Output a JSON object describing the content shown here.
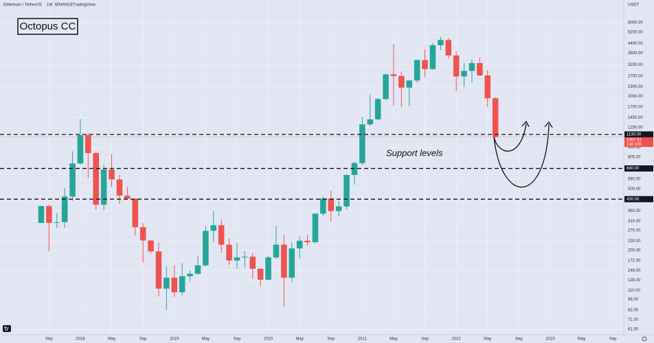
{
  "header": [
    "Ethereum / TetherUS",
    "1M",
    "BINANCE",
    "TradingView"
  ],
  "chart_data": {
    "type": "candlestick",
    "currency": "USDT",
    "annotations": [
      "Octopus CC",
      "Support levels"
    ],
    "log_scale": true,
    "grid": true,
    "up_color": "#26a69a",
    "down_color": "#ef5350",
    "series": {
      "open": [
        301,
        388,
        302,
        305,
        447,
        733,
        1118,
        856,
        396,
        669,
        577,
        453,
        433,
        283,
        232,
        197,
        113,
        133,
        107,
        136,
        141,
        160,
        268,
        291,
        218,
        172,
        180,
        182,
        152,
        129,
        180,
        218,
        133,
        206,
        231,
        226,
        346,
        434,
        360,
        386,
        617,
        737,
        1314,
        1416,
        1918,
        2773,
        2707,
        2275,
        2531,
        3433,
        3000,
        4288,
        4631,
        3676,
        2688,
        2919,
        3282,
        2727,
        1941
      ],
      "high": [
        390,
        395,
        350,
        510,
        880,
        1420,
        1160,
        880,
        720,
        840,
        620,
        515,
        435,
        300,
        232,
        225,
        158,
        160,
        165,
        148,
        184,
        288,
        362,
        318,
        239,
        223,
        198,
        192,
        153,
        184,
        288,
        253,
        227,
        246,
        253,
        349,
        446,
        488,
        420,
        623,
        755,
        1476,
        2041,
        1946,
        2797,
        4372,
        2891,
        2551,
        3466,
        4027,
        4460,
        4870,
        4778,
        3900,
        3280,
        3480,
        3580,
        2955,
        1970
      ],
      "low": [
        300,
        197,
        280,
        280,
        420,
        720,
        590,
        367,
        365,
        514,
        400,
        430,
        250,
        167,
        191,
        101,
        81.8,
        100,
        102,
        126,
        139,
        157,
        228,
        193,
        161,
        152,
        155,
        131,
        117,
        128,
        176,
        86,
        125,
        178,
        215,
        222,
        335,
        308,
        334,
        370,
        535,
        714,
        1284,
        1400,
        1875,
        1728,
        1700,
        1718,
        2450,
        2652,
        2970,
        3967,
        3500,
        2159,
        2300,
        2450,
        2700,
        1704,
        1070
      ],
      "close": [
        388,
        302,
        305,
        447,
        733,
        1118,
        856,
        396,
        669,
        577,
        453,
        433,
        283,
        232,
        197,
        113,
        133,
        107,
        136,
        141,
        160,
        268,
        291,
        218,
        172,
        180,
        182,
        152,
        129,
        180,
        218,
        133,
        206,
        231,
        226,
        346,
        434,
        360,
        386,
        617,
        737,
        1314,
        1416,
        1918,
        2773,
        2707,
        2275,
        2531,
        3433,
        3000,
        4288,
        4631,
        3676,
        2688,
        2919,
        3282,
        2727,
        1941,
        1087.62
      ]
    },
    "xlim": [
      -5.26,
      74.39
    ],
    "xticks": [
      {
        "value": 1,
        "label": "Sep"
      },
      {
        "value": 5,
        "label": "2018"
      },
      {
        "value": 9,
        "label": "May"
      },
      {
        "value": 13,
        "label": "Sep"
      },
      {
        "value": 17,
        "label": "2019"
      },
      {
        "value": 21,
        "label": "May"
      },
      {
        "value": 25,
        "label": "Sep"
      },
      {
        "value": 29,
        "label": "2020"
      },
      {
        "value": 33,
        "label": "May"
      },
      {
        "value": 37,
        "label": "Sep"
      },
      {
        "value": 41,
        "label": "2021"
      },
      {
        "value": 45,
        "label": "May"
      },
      {
        "value": 49,
        "label": "Sep"
      },
      {
        "value": 53,
        "label": "2022"
      },
      {
        "value": 57,
        "label": "May"
      },
      {
        "value": 61,
        "label": "Sep"
      },
      {
        "value": 65,
        "label": "2023"
      },
      {
        "value": 69,
        "label": "May"
      },
      {
        "value": 73,
        "label": "Sep"
      }
    ],
    "ylim": [
      57.3,
      7445
    ],
    "yticks": [
      {
        "value": 6000,
        "label": "6000.00"
      },
      {
        "value": 5200,
        "label": "5200.00"
      },
      {
        "value": 4400,
        "label": "4400.00"
      },
      {
        "value": 3800,
        "label": "3800.00"
      },
      {
        "value": 3200,
        "label": "3200.00"
      },
      {
        "value": 2700,
        "label": "2700.00"
      },
      {
        "value": 2300,
        "label": "2300.00"
      },
      {
        "value": 2000,
        "label": "2000.00"
      },
      {
        "value": 1700,
        "label": "1700.00"
      },
      {
        "value": 1450,
        "label": "1450.00"
      },
      {
        "value": 1250,
        "label": "1250.00"
      },
      {
        "value": 930,
        "label": "930.00"
      },
      {
        "value": 805,
        "label": "805.00"
      },
      {
        "value": 580,
        "label": "580.00"
      },
      {
        "value": 500,
        "label": "500.00"
      },
      {
        "value": 360,
        "label": "360.00"
      },
      {
        "value": 310,
        "label": "310.00"
      },
      {
        "value": 270,
        "label": "270.00"
      },
      {
        "value": 230,
        "label": "230.00"
      },
      {
        "value": 200,
        "label": "200.00"
      },
      {
        "value": 172,
        "label": "172.00"
      },
      {
        "value": 148,
        "label": "148.00"
      },
      {
        "value": 128,
        "label": "128.00"
      },
      {
        "value": 110,
        "label": "110.00"
      },
      {
        "value": 96,
        "label": "96.00"
      },
      {
        "value": 82,
        "label": "82.00"
      },
      {
        "value": 71,
        "label": "71.00"
      },
      {
        "value": 61.5,
        "label": "61.50"
      }
    ],
    "levels": [
      {
        "value": 1130,
        "label": "1130.00"
      },
      {
        "value": 680,
        "label": "680.00"
      },
      {
        "value": 430,
        "label": "430.00"
      }
    ],
    "last_price": {
      "value": 1087.62,
      "label": "1087.62",
      "countdown": "13d 10h"
    }
  }
}
